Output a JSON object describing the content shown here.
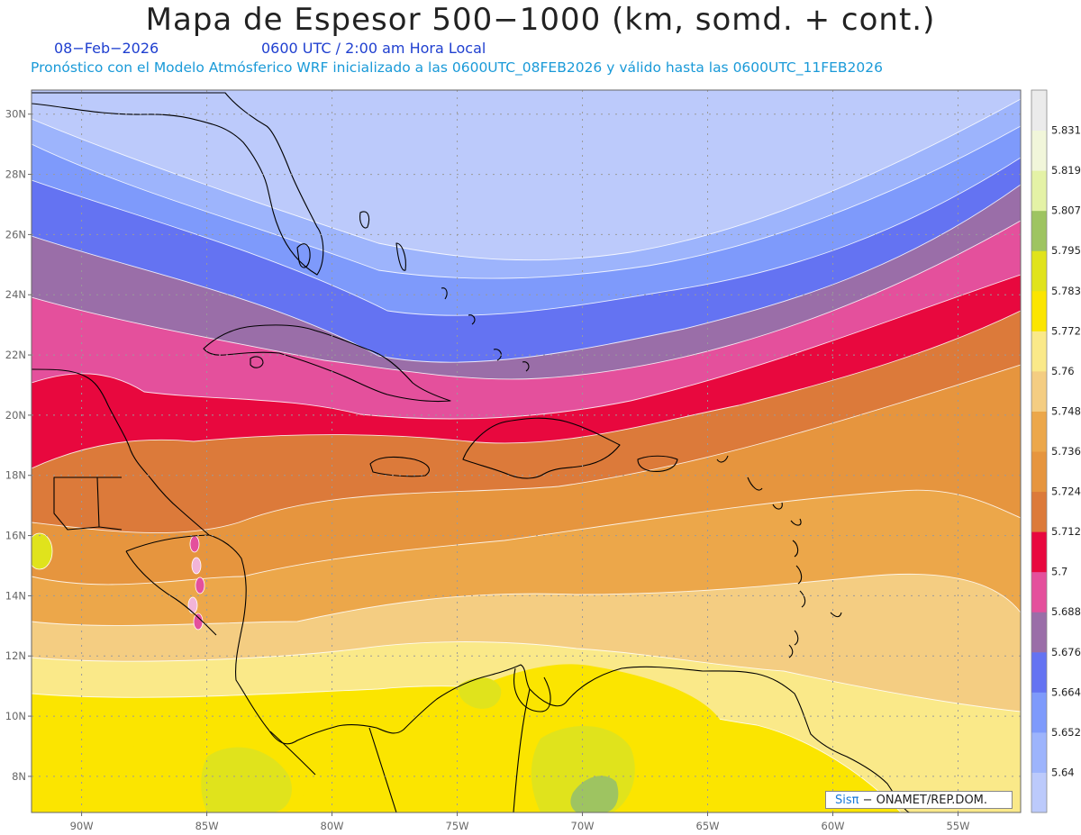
{
  "header": {
    "title": "Mapa de Espesor 500−1000 (km, somd. + cont.)",
    "date": "08−Feb−2026",
    "time": "0600 UTC / 2:00 am Hora Local",
    "info": "Pronóstico con el Modelo Atmósferico WRF inicializado a las 0600UTC_08FEB2026 y válido hasta las  0600UTC_11FEB2026"
  },
  "map_data": {
    "type": "contour-map",
    "units": "km",
    "lon_range": [
      -92,
      -52.5
    ],
    "lat_range": [
      6.8,
      30.8
    ],
    "lat_ticks": [
      "30N",
      "28N",
      "26N",
      "24N",
      "22N",
      "20N",
      "18N",
      "16N",
      "14N",
      "12N",
      "10N",
      "8N"
    ],
    "lon_ticks": [
      "90W",
      "85W",
      "80W",
      "75W",
      "70W",
      "65W",
      "60W",
      "55W"
    ],
    "grid": true,
    "colorbar": {
      "position": "right",
      "levels": [
        5.64,
        5.652,
        5.664,
        5.676,
        5.688,
        5.7,
        5.712,
        5.724,
        5.736,
        5.748,
        5.76,
        5.772,
        5.783,
        5.795,
        5.807,
        5.819,
        5.831
      ],
      "colors": [
        "#bccafb",
        "#9db4fc",
        "#7e9afb",
        "#6473f2",
        "#9a6ea8",
        "#e4509c",
        "#e8083e",
        "#dc7a3a",
        "#e6953e",
        "#eca74a",
        "#f4cd82",
        "#fae989",
        "#fbe500",
        "#e0e31c",
        "#9ec461",
        "#e4f2a6",
        "#f1f6da",
        "#ebebeb"
      ]
    }
  },
  "credit": {
    "brand": "Sisπ",
    "text": "− ONAMET/REP.DOM."
  }
}
